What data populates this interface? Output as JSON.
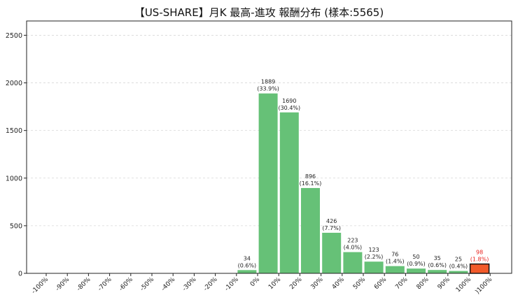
{
  "chart_data": {
    "type": "bar",
    "title": "【US-SHARE】月K 最高-進攻 報酬分布 (樣本:5565)",
    "xlabel": "",
    "ylabel": "",
    "ylim": [
      0,
      2650
    ],
    "yticks": [
      "0",
      "500",
      "1000",
      "1500",
      "2000",
      "2500"
    ],
    "grid": "horizontal dashed",
    "categories": [
      "-100%",
      "-90%",
      "-80%",
      "-70%",
      "-60%",
      "-50%",
      "-40%",
      "-30%",
      "-20%",
      "-10%",
      "0%",
      "10%",
      "20%",
      "30%",
      "40%",
      "50%",
      "60%",
      "70%",
      "80%",
      "90%",
      "100%",
      ")100%"
    ],
    "bars": [
      {
        "value": 34,
        "count_label": "34",
        "pct_label": "(0.6%)",
        "highlight": false
      },
      {
        "value": 1889,
        "count_label": "1889",
        "pct_label": "(33.9%)",
        "highlight": false
      },
      {
        "value": 1690,
        "count_label": "1690",
        "pct_label": "(30.4%)",
        "highlight": false
      },
      {
        "value": 896,
        "count_label": "896",
        "pct_label": "(16.1%)",
        "highlight": false
      },
      {
        "value": 426,
        "count_label": "426",
        "pct_label": "(7.7%)",
        "highlight": false
      },
      {
        "value": 223,
        "count_label": "223",
        "pct_label": "(4.0%)",
        "highlight": false
      },
      {
        "value": 123,
        "count_label": "123",
        "pct_label": "(2.2%)",
        "highlight": false
      },
      {
        "value": 76,
        "count_label": "76",
        "pct_label": "(1.4%)",
        "highlight": false
      },
      {
        "value": 50,
        "count_label": "50",
        "pct_label": "(0.9%)",
        "highlight": false
      },
      {
        "value": 35,
        "count_label": "35",
        "pct_label": "(0.6%)",
        "highlight": false
      },
      {
        "value": 25,
        "count_label": "25",
        "pct_label": "(0.4%)",
        "highlight": false
      },
      {
        "value": 98,
        "count_label": "98",
        "pct_label": "(1.8%)",
        "highlight": true
      }
    ],
    "colors": {
      "bar": "#66c177",
      "highlight_fill": "#f25a2a",
      "highlight_edge": "#111111",
      "highlight_label": "#e8231f",
      "grid": "#d8d8d8"
    }
  }
}
